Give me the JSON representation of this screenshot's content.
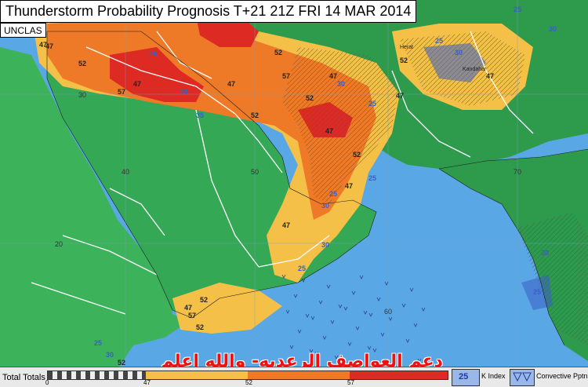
{
  "title": "Thunderstorm Probability Prognosis T+21 21Z FRI 14 MAR 2014",
  "classification": "UNCLAS",
  "legend": {
    "label": "Total Totals",
    "ticks": [
      "0",
      "47",
      "52",
      "57"
    ],
    "kindex_value": "25",
    "kindex_label": "K Index",
    "convective_label": "Convective Pptn"
  },
  "watermark_text": "دعم العواصف الرعديه- والله اعلم",
  "colors": {
    "sea": "#5aa7e6",
    "land_low": "#3cb25a",
    "land_mid": "#2e9a4c",
    "tt47": "#f5c048",
    "tt52": "#ee7a28",
    "tt57": "#dd2a22",
    "kindex": "#3b5fc6"
  },
  "map": {
    "lat_labels": [
      "30",
      "20",
      "10"
    ],
    "lon_labels": [
      "40",
      "50",
      "60",
      "70"
    ],
    "cities": [
      "Herat",
      "Kandahar"
    ],
    "contour_labels": [
      "47",
      "52",
      "57",
      "25",
      "30",
      "35",
      "47",
      "52",
      "57",
      "47",
      "52",
      "30",
      "25",
      "47",
      "52",
      "25",
      "30",
      "47",
      "25",
      "30",
      "47",
      "52",
      "47",
      "25",
      "47",
      "30",
      "25",
      "57",
      "52",
      "47",
      "52",
      "30",
      "25",
      "47",
      "52",
      "25",
      "30",
      "47",
      "25",
      "30",
      "52",
      "47"
    ]
  }
}
